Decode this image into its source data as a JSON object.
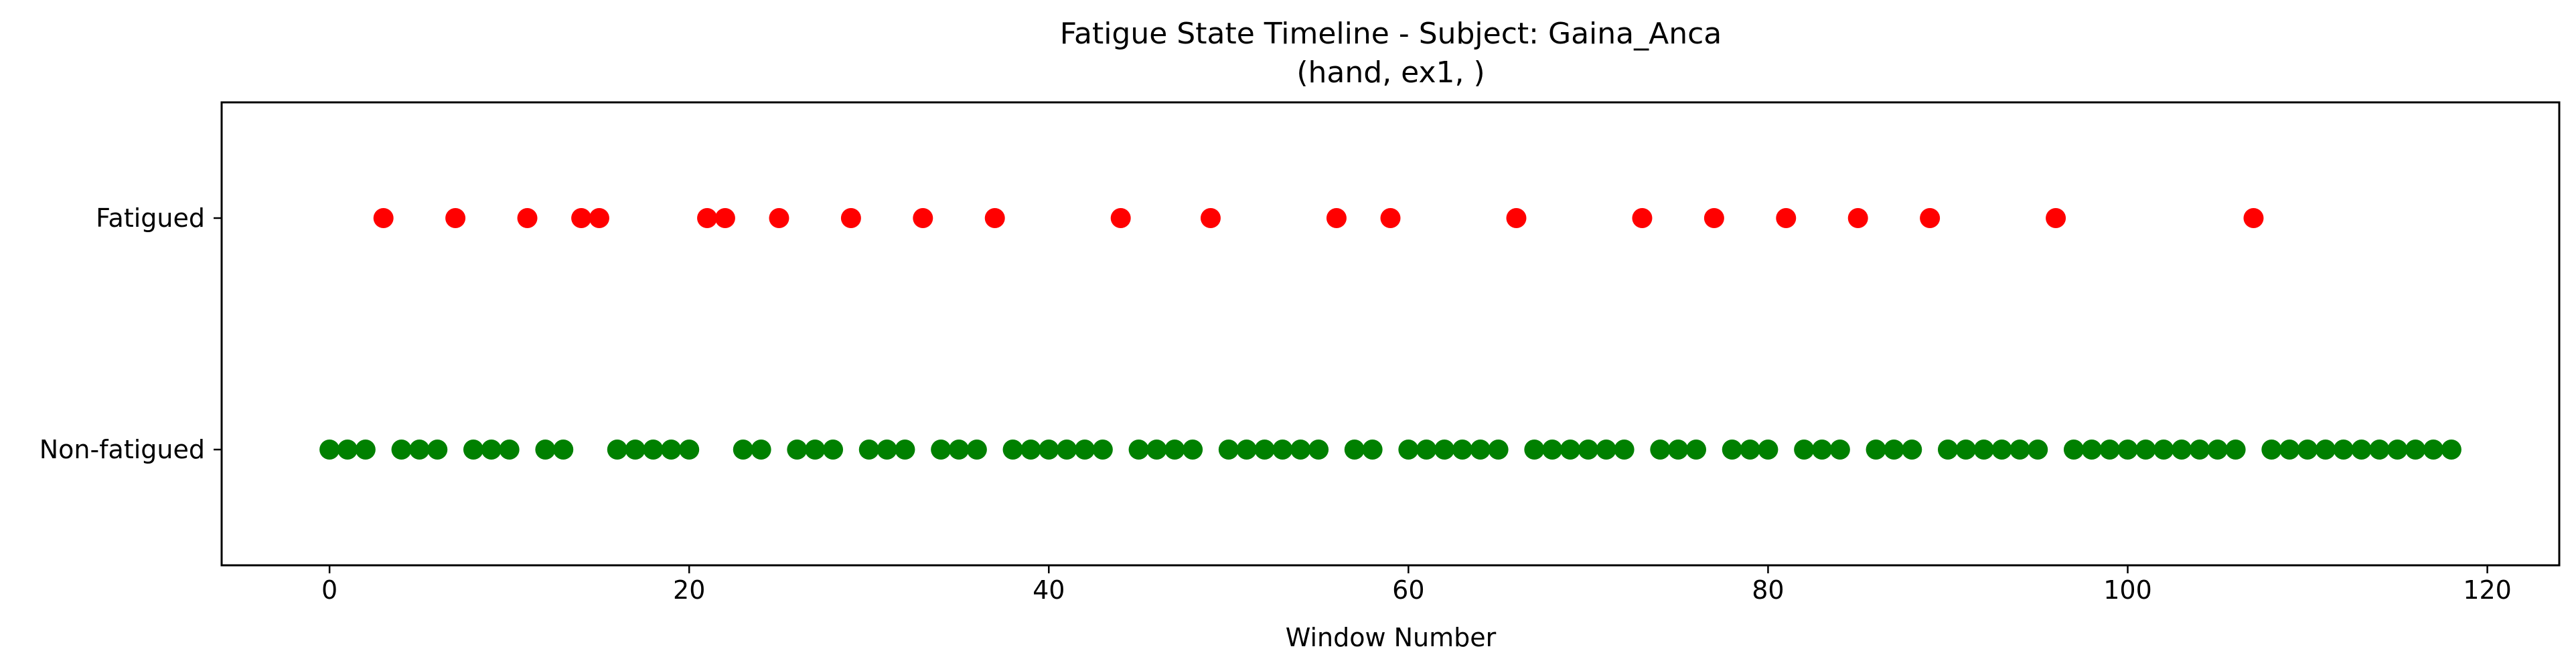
{
  "chart_data": {
    "type": "scatter",
    "title": "Fatigue State Timeline - Subject: Gaina_Anca",
    "subtitle": "(hand, ex1, )",
    "xlabel": "Window Number",
    "ylabel": "",
    "xlim": [
      -6,
      124
    ],
    "ylim": [
      -0.5,
      1.5
    ],
    "xticks": [
      0,
      20,
      40,
      60,
      80,
      100,
      120
    ],
    "yticks": [
      {
        "value": 1,
        "label": "Fatigued"
      },
      {
        "value": 0,
        "label": "Non-fatigued"
      }
    ],
    "grid": false,
    "legend": "none",
    "series": [
      {
        "state": 1,
        "color": "#ff0000",
        "x": [
          3,
          7,
          11,
          14,
          15,
          21,
          22,
          25,
          29,
          33,
          37,
          44,
          49,
          56,
          59,
          66,
          73,
          77,
          81,
          85,
          89,
          96,
          107
        ]
      },
      {
        "state": 0,
        "color": "#008000",
        "x": [
          0,
          1,
          2,
          4,
          5,
          6,
          8,
          9,
          10,
          12,
          13,
          16,
          17,
          18,
          19,
          20,
          23,
          24,
          26,
          27,
          28,
          30,
          31,
          32,
          34,
          35,
          36,
          38,
          39,
          40,
          41,
          42,
          43,
          45,
          46,
          47,
          48,
          50,
          51,
          52,
          53,
          54,
          55,
          57,
          58,
          60,
          61,
          62,
          63,
          64,
          65,
          67,
          68,
          69,
          70,
          71,
          72,
          74,
          75,
          76,
          78,
          79,
          80,
          82,
          83,
          84,
          86,
          87,
          88,
          90,
          91,
          92,
          93,
          94,
          95,
          97,
          98,
          99,
          100,
          101,
          102,
          103,
          104,
          105,
          106,
          108,
          109,
          110,
          111,
          112,
          113,
          114,
          115,
          116,
          117,
          118
        ]
      }
    ]
  }
}
